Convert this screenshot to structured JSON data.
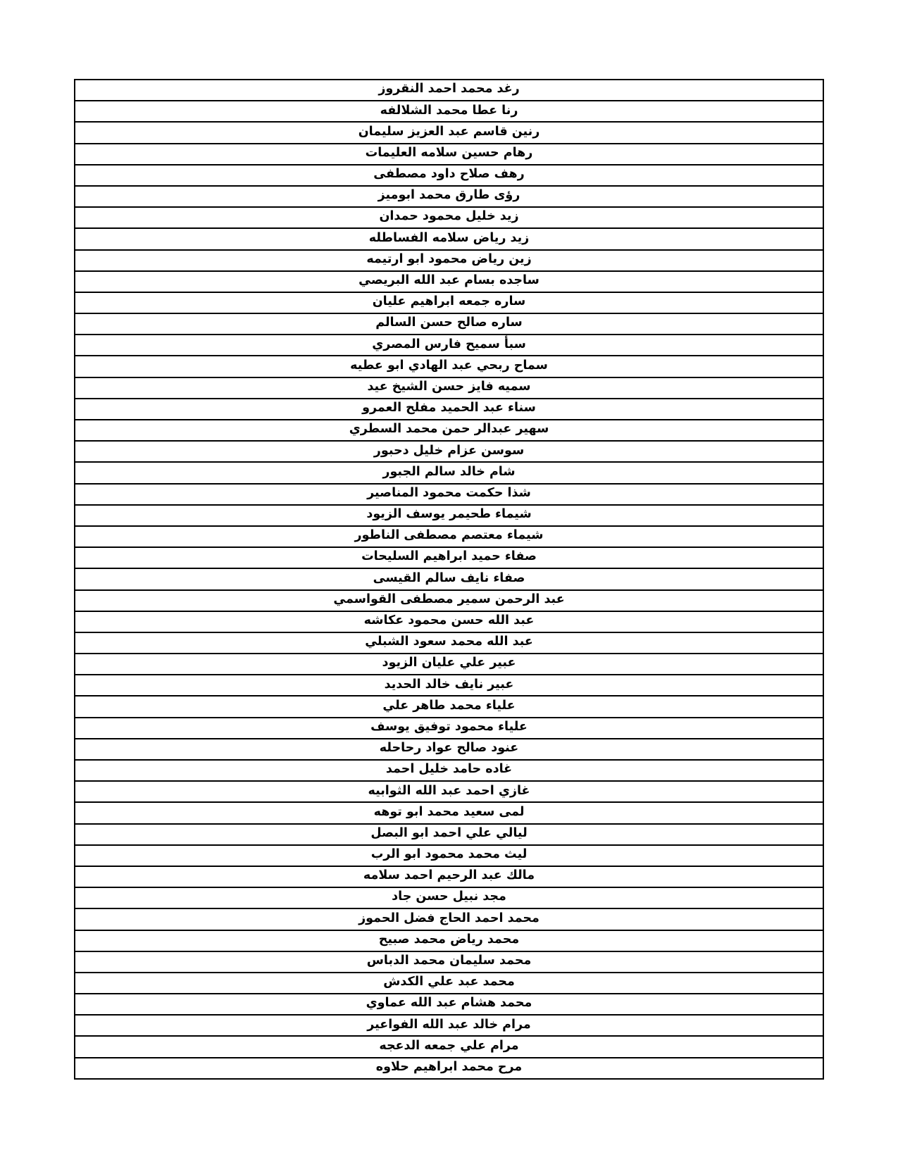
{
  "page": {
    "background_color": "#ffffff",
    "text_color": "#000000",
    "border_color": "#000000"
  },
  "table": {
    "columns": 1,
    "row_count": 47,
    "rows": [
      "رغد محمد احمد النقروز",
      "رنا عطا محمد الشلالفه",
      "رنين قاسم عبد العزيز سليمان",
      "رهام حسين سلامه العليمات",
      "رهف صلاح داود مصطفى",
      "رؤى طارق محمد ابوميز",
      "زيد خليل محمود حمدان",
      "زيد رياض سلامه الفساطله",
      "زين رياض محمود ابو ارتيمه",
      "ساجده بسام عبد الله البريصي",
      "ساره جمعه ابراهيم عليان",
      "ساره صالح حسن السالم",
      "سبأ سميح فارس المصري",
      "سماح ربحي عبد الهادي ابو عطيه",
      "سميه فايز حسن الشيخ عيد",
      "سناء عبد الحميد مفلح العمرو",
      "سهير عبدالر حمن محمد السطري",
      "سوسن عزام خليل دحبور",
      "شام خالد سالم الجبور",
      "شذا حكمت محمود المناصير",
      "شيماء طحيمر يوسف الزيود",
      "شيماء معتصم مصطفى الناطور",
      "صفاء حميد ابراهيم السليحات",
      "صفاء نايف سالم القيسى",
      "عبد الرحمن سمير مصطفى القواسمي",
      "عبد الله حسن محمود عكاشه",
      "عبد الله محمد سعود الشبلي",
      "عبير علي عليان الزيود",
      "عبير نايف خالد الحديد",
      "علياء محمد طاهر علي",
      "علياء محمود توفيق يوسف",
      "عنود صالح عواد رحاحله",
      "غاده حامد خليل احمد",
      "غازي احمد عبد الله الثوابيه",
      "لمى سعيد محمد ابو توهه",
      "ليالي علي احمد ابو البصل",
      "ليث محمد محمود ابو الرب",
      "مالك عبد الرحيم احمد سلامه",
      "مجد نبيل حسن جاد",
      "محمد احمد الحاج فضل الحموز",
      "محمد رياض محمد صبيح",
      "محمد سليمان محمد الدباس",
      "محمد عبد علي الكدش",
      "محمد هشام عبد الله عماوي",
      "مرام خالد عبد الله الفواعير",
      "مرام علي جمعه الدعجه",
      "مرح محمد ابراهيم حلاوه"
    ]
  }
}
